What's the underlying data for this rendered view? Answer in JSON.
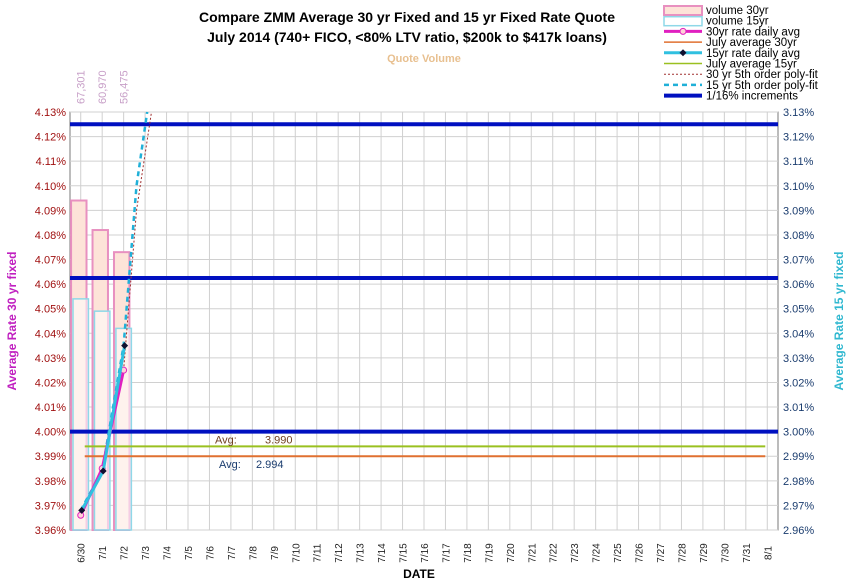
{
  "chart_data": {
    "type": "combo",
    "title_line1": "Compare ZMM Average 30 yr Fixed and 15 yr Fixed Rate Quote",
    "title_line2": "July 2014  (740+ FICO, <80% LTV ratio, $200k to $417k loans)",
    "subtitle": "Quote Volume",
    "xlabel": "DATE",
    "ylabel_left": "Average Rate 30 yr fixed",
    "ylabel_right": "Average Rate 15 yr fixed",
    "ylim_left": [
      3.96,
      4.13
    ],
    "ylim_right": [
      2.96,
      3.13
    ],
    "yticks_left": [
      "3.96%",
      "3.97%",
      "3.98%",
      "3.99%",
      "4.00%",
      "4.01%",
      "4.02%",
      "4.03%",
      "4.04%",
      "4.05%",
      "4.06%",
      "4.07%",
      "4.08%",
      "4.09%",
      "4.10%",
      "4.11%",
      "4.12%",
      "4.13%"
    ],
    "yticks_right": [
      "2.96%",
      "2.97%",
      "2.98%",
      "2.99%",
      "3.00%",
      "3.01%",
      "3.02%",
      "3.03%",
      "3.04%",
      "3.05%",
      "3.06%",
      "3.07%",
      "3.08%",
      "3.09%",
      "3.10%",
      "3.11%",
      "3.12%",
      "3.13%"
    ],
    "categories": [
      "6/30",
      "7/1",
      "7/2",
      "7/3",
      "7/4",
      "7/5",
      "7/6",
      "7/7",
      "7/8",
      "7/9",
      "7/10",
      "7/11",
      "7/12",
      "7/13",
      "7/14",
      "7/15",
      "7/16",
      "7/17",
      "7/18",
      "7/19",
      "7/20",
      "7/21",
      "7/22",
      "7/23",
      "7/24",
      "7/25",
      "7/26",
      "7/27",
      "7/28",
      "7/29",
      "7/30",
      "7/31",
      "8/1"
    ],
    "volume_30yr": [
      67301,
      60970,
      56475
    ],
    "volume_30yr_labels": [
      "67,301",
      "60,970",
      "56,475"
    ],
    "volume_15yr_scaled_rate": [
      4.054,
      4.049,
      4.042
    ],
    "volume_30yr_scaled_rate": [
      4.094,
      4.082,
      4.073
    ],
    "rate_30yr_daily_avg": [
      3.966,
      3.985,
      4.025
    ],
    "rate_15yr_daily_avg": [
      2.968,
      2.984,
      3.035
    ],
    "july_avg_30yr": 3.99,
    "july_avg_15yr": 2.994,
    "avg_label": "Avg:",
    "avg_30yr_text": "3.990",
    "avg_15yr_text": "2.994",
    "increment_lines_left": [
      4.0,
      4.0625,
      4.125
    ],
    "poly_30yr": [
      [
        0,
        3.966
      ],
      [
        1,
        3.985
      ],
      [
        2,
        4.025
      ],
      [
        2.6,
        4.09
      ],
      [
        3.3,
        4.135
      ]
    ],
    "poly_15yr": [
      [
        0,
        2.968
      ],
      [
        1,
        2.984
      ],
      [
        2,
        3.035
      ],
      [
        2.6,
        3.1
      ],
      [
        3.1,
        3.135
      ]
    ],
    "legend": {
      "placement": "top-right",
      "items": [
        {
          "label": "volume 30yr",
          "kind": "bar30"
        },
        {
          "label": "volume 15yr",
          "kind": "bar15"
        },
        {
          "label": "30yr rate daily avg",
          "kind": "line30"
        },
        {
          "label": "July average 30yr",
          "kind": "avg30"
        },
        {
          "label": "15yr rate daily avg",
          "kind": "line15"
        },
        {
          "label": "July average 15yr",
          "kind": "avg15"
        },
        {
          "label": "30 yr 5th order poly-fit",
          "kind": "poly30"
        },
        {
          "label": "15 yr 5th order poly-fit",
          "kind": "poly15"
        },
        {
          "label": "1/16% increments",
          "kind": "inc"
        }
      ]
    },
    "colors": {
      "vol30_fill": "#fde3d8",
      "vol30_stroke": "#e890c0",
      "vol15_fill": "#ffffff",
      "vol15_stroke": "#8fd8e8",
      "line30": "#e020c0",
      "line15": "#30c0e0",
      "avg30": "#e07030",
      "avg15": "#9ac020",
      "poly30": "#a03030",
      "poly15": "#20b0d8",
      "inc": "#0010c0"
    }
  }
}
